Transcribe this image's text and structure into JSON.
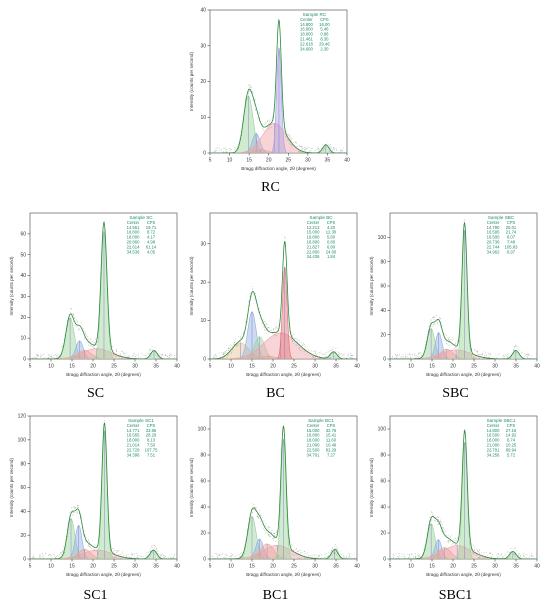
{
  "chart_data": [
    {
      "id": "RC",
      "type": "line",
      "caption": "RC",
      "ylabel": "Intensity (counts per second)",
      "xlabel": "Bragg diffraction angle, 2θ (degrees)",
      "xlim": [
        5,
        40
      ],
      "ylim": [
        0,
        40
      ],
      "xticks": [
        5,
        10,
        15,
        20,
        25,
        30,
        35,
        40
      ],
      "yticks": [
        0,
        10,
        20,
        30,
        40
      ],
      "table": {
        "title": "Sample RC",
        "header": [
          "Center",
          "CPS"
        ],
        "rows": [
          [
            "14.800",
            "16.00"
          ],
          [
            "16.800",
            "5.46"
          ],
          [
            "18.000",
            "0.96"
          ],
          [
            "21.461",
            "8.30"
          ],
          [
            "22.618",
            "29.46"
          ],
          [
            "34.600",
            "2.30"
          ]
        ]
      },
      "peaks": [
        {
          "center": 14.8,
          "cps": 16.0,
          "width": 1.2,
          "color": "#9ad29a"
        },
        {
          "center": 16.8,
          "cps": 5.46,
          "width": 1.0,
          "color": "#8fb0e0"
        },
        {
          "center": 18.0,
          "cps": 0.96,
          "width": 1.6,
          "color": "#e0a890"
        },
        {
          "center": 21.461,
          "cps": 8.3,
          "width": 3.0,
          "color": "#f0a0a8"
        },
        {
          "center": 22.618,
          "cps": 29.46,
          "width": 0.6,
          "color": "#a8a0e0"
        },
        {
          "center": 34.6,
          "cps": 2.3,
          "width": 0.8,
          "color": "#9ad29a"
        }
      ]
    },
    {
      "id": "SC",
      "type": "line",
      "caption": "SC",
      "ylabel": "Intensity (counts per second)",
      "xlabel": "Bragg diffraction angle, 2θ (degrees)",
      "xlim": [
        5,
        40
      ],
      "ylim": [
        0,
        70
      ],
      "xticks": [
        5,
        10,
        15,
        20,
        25,
        30,
        35,
        40
      ],
      "yticks": [
        0,
        10,
        20,
        30,
        40,
        50,
        60
      ],
      "table": {
        "title": "Sample SC",
        "header": [
          "Center",
          "CPS"
        ],
        "rows": [
          [
            "14.551",
            "19.71"
          ],
          [
            "16.800",
            "8.72"
          ],
          [
            "18.000",
            "4.17"
          ],
          [
            "20.860",
            "4.98"
          ],
          [
            "22.614",
            "61.14"
          ],
          [
            "34.536",
            "4.05"
          ]
        ]
      },
      "peaks": [
        {
          "center": 14.551,
          "cps": 19.71,
          "width": 1.0,
          "color": "#9ad29a"
        },
        {
          "center": 16.8,
          "cps": 8.72,
          "width": 0.9,
          "color": "#8fb0e0"
        },
        {
          "center": 18.0,
          "cps": 4.17,
          "width": 1.6,
          "color": "#e0a890"
        },
        {
          "center": 20.86,
          "cps": 4.98,
          "width": 3.5,
          "color": "#f0a0a8"
        },
        {
          "center": 22.614,
          "cps": 61.14,
          "width": 0.7,
          "color": "#9ad29a"
        },
        {
          "center": 34.536,
          "cps": 4.05,
          "width": 0.8,
          "color": "#9ad29a"
        }
      ]
    },
    {
      "id": "BC",
      "type": "line",
      "caption": "BC",
      "ylabel": "Intensity (counts per second)",
      "xlabel": "Bragg diffraction angle, 2θ (degrees)",
      "xlim": [
        5,
        40
      ],
      "ylim": [
        0,
        38
      ],
      "xticks": [
        5,
        10,
        15,
        20,
        25,
        30,
        35,
        40
      ],
      "yticks": [
        0,
        10,
        20,
        30
      ],
      "table": {
        "title": "Sample BC",
        "header": [
          "Center",
          "CPS"
        ],
        "rows": [
          [
            "12.213",
            "4.20"
          ],
          [
            "15.000",
            "12.30"
          ],
          [
            "16.800",
            "5.80"
          ],
          [
            "18.800",
            "0.80"
          ],
          [
            "21.827",
            "6.80"
          ],
          [
            "22.800",
            "24.00"
          ],
          [
            "34.436",
            "1.84"
          ]
        ]
      },
      "peaks": [
        {
          "center": 12.213,
          "cps": 4.2,
          "width": 2.0,
          "color": "#e0c090"
        },
        {
          "center": 15.0,
          "cps": 12.3,
          "width": 1.0,
          "color": "#8fb0e0"
        },
        {
          "center": 16.8,
          "cps": 5.8,
          "width": 1.2,
          "color": "#9ad29a"
        },
        {
          "center": 18.8,
          "cps": 0.8,
          "width": 1.5,
          "color": "#e0a890"
        },
        {
          "center": 21.827,
          "cps": 6.8,
          "width": 4.0,
          "color": "#f0a0a8"
        },
        {
          "center": 22.8,
          "cps": 24.0,
          "width": 0.55,
          "color": "#e07070"
        },
        {
          "center": 34.436,
          "cps": 1.84,
          "width": 0.8,
          "color": "#9ad29a"
        }
      ]
    },
    {
      "id": "SBC",
      "type": "line",
      "caption": "SBC",
      "ylabel": "Intensity (counts per second)",
      "xlabel": "Bragg diffraction angle, 2θ (degrees)",
      "xlim": [
        5,
        40
      ],
      "ylim": [
        0,
        120
      ],
      "xticks": [
        5,
        10,
        15,
        20,
        25,
        30,
        35,
        40
      ],
      "yticks": [
        0,
        20,
        40,
        60,
        80,
        100
      ],
      "table": {
        "title": "Sample SBC",
        "header": [
          "Center",
          "CPS"
        ],
        "rows": [
          [
            "14.790",
            "25.01"
          ],
          [
            "16.595",
            "21.74"
          ],
          [
            "18.500",
            "8.07"
          ],
          [
            "20.736",
            "7.48"
          ],
          [
            "22.744",
            "105.83"
          ],
          [
            "34.962",
            "6.97"
          ]
        ]
      },
      "peaks": [
        {
          "center": 14.79,
          "cps": 25.01,
          "width": 0.9,
          "color": "#9ad29a"
        },
        {
          "center": 16.595,
          "cps": 21.74,
          "width": 0.8,
          "color": "#8fb0e0"
        },
        {
          "center": 18.5,
          "cps": 8.07,
          "width": 1.5,
          "color": "#e0a890"
        },
        {
          "center": 20.736,
          "cps": 7.48,
          "width": 3.5,
          "color": "#f0a0a8"
        },
        {
          "center": 22.744,
          "cps": 105.83,
          "width": 0.6,
          "color": "#9ad29a"
        },
        {
          "center": 34.962,
          "cps": 6.97,
          "width": 0.8,
          "color": "#9ad29a"
        }
      ]
    },
    {
      "id": "SC1",
      "type": "line",
      "caption": "SC1",
      "ylabel": "Intensity (counts per second)",
      "xlabel": "Bragg diffraction angle, 2θ (degrees)",
      "xlim": [
        5,
        40
      ],
      "ylim": [
        0,
        120
      ],
      "xticks": [
        5,
        10,
        15,
        20,
        25,
        30,
        35,
        40
      ],
      "yticks": [
        0,
        20,
        40,
        60,
        80,
        100,
        120
      ],
      "table": {
        "title": "Sample SC1",
        "header": [
          "Center",
          "CPS"
        ],
        "rows": [
          [
            "14.771",
            "33.86"
          ],
          [
            "16.565",
            "28.29"
          ],
          [
            "18.000",
            "8.13"
          ],
          [
            "21.014",
            "7.50"
          ],
          [
            "22.729",
            "107.75"
          ],
          [
            "34.398",
            "7.51"
          ]
        ]
      },
      "peaks": [
        {
          "center": 14.771,
          "cps": 33.86,
          "width": 0.9,
          "color": "#9ad29a"
        },
        {
          "center": 16.565,
          "cps": 28.29,
          "width": 0.8,
          "color": "#8fb0e0"
        },
        {
          "center": 18.0,
          "cps": 8.13,
          "width": 1.5,
          "color": "#e0a890"
        },
        {
          "center": 21.014,
          "cps": 7.5,
          "width": 3.5,
          "color": "#f0a0a8"
        },
        {
          "center": 22.729,
          "cps": 107.75,
          "width": 0.6,
          "color": "#9ad29a"
        },
        {
          "center": 34.398,
          "cps": 7.51,
          "width": 0.8,
          "color": "#9ad29a"
        }
      ]
    },
    {
      "id": "BC1",
      "type": "line",
      "caption": "BC1",
      "ylabel": "Intensity (counts per second)",
      "xlabel": "Bragg diffraction angle, 2θ (degrees)",
      "xlim": [
        5,
        40
      ],
      "ylim": [
        0,
        110
      ],
      "xticks": [
        5,
        10,
        15,
        20,
        25,
        30,
        35,
        40
      ],
      "yticks": [
        0,
        20,
        40,
        60,
        80,
        100
      ],
      "table": {
        "title": "Sample BC1",
        "header": [
          "Center",
          "CPS"
        ],
        "rows": [
          [
            "15.000",
            "32.76"
          ],
          [
            "16.800",
            "15.41"
          ],
          [
            "18.600",
            "11.60"
          ],
          [
            "21.000",
            "10.49"
          ],
          [
            "22.500",
            "92.29"
          ],
          [
            "34.701",
            "7.27"
          ]
        ]
      },
      "peaks": [
        {
          "center": 15.0,
          "cps": 32.76,
          "width": 1.0,
          "color": "#9ad29a"
        },
        {
          "center": 16.8,
          "cps": 15.41,
          "width": 0.9,
          "color": "#8fb0e0"
        },
        {
          "center": 18.6,
          "cps": 11.6,
          "width": 1.6,
          "color": "#e0a890"
        },
        {
          "center": 21.0,
          "cps": 10.49,
          "width": 3.5,
          "color": "#f0a0a8"
        },
        {
          "center": 22.5,
          "cps": 92.29,
          "width": 0.6,
          "color": "#9ad29a"
        },
        {
          "center": 34.701,
          "cps": 7.27,
          "width": 0.8,
          "color": "#9ad29a"
        }
      ]
    },
    {
      "id": "SBC1",
      "type": "line",
      "caption": "SBC1",
      "ylabel": "Intensity (counts per second)",
      "xlabel": "Bragg diffraction angle, 2θ (degrees)",
      "xlim": [
        5,
        40
      ],
      "ylim": [
        0,
        110
      ],
      "xticks": [
        5,
        10,
        15,
        20,
        25,
        30,
        35,
        40
      ],
      "yticks": [
        0,
        20,
        40,
        60,
        80,
        100
      ],
      "table": {
        "title": "Sample SBC1",
        "header": [
          "Center",
          "CPS"
        ],
        "rows": [
          [
            "14.800",
            "27.16"
          ],
          [
            "16.500",
            "14.92"
          ],
          [
            "18.000",
            "8.74"
          ],
          [
            "21.000",
            "10.25"
          ],
          [
            "22.791",
            "89.94"
          ],
          [
            "34.256",
            "5.72"
          ]
        ]
      },
      "peaks": [
        {
          "center": 14.8,
          "cps": 27.16,
          "width": 0.9,
          "color": "#9ad29a"
        },
        {
          "center": 16.5,
          "cps": 14.92,
          "width": 0.8,
          "color": "#8fb0e0"
        },
        {
          "center": 18.0,
          "cps": 8.74,
          "width": 1.5,
          "color": "#e0a890"
        },
        {
          "center": 21.0,
          "cps": 10.25,
          "width": 3.5,
          "color": "#f0a0a8"
        },
        {
          "center": 22.791,
          "cps": 89.94,
          "width": 0.6,
          "color": "#9ad29a"
        },
        {
          "center": 34.256,
          "cps": 5.72,
          "width": 0.8,
          "color": "#9ad29a"
        }
      ]
    }
  ]
}
